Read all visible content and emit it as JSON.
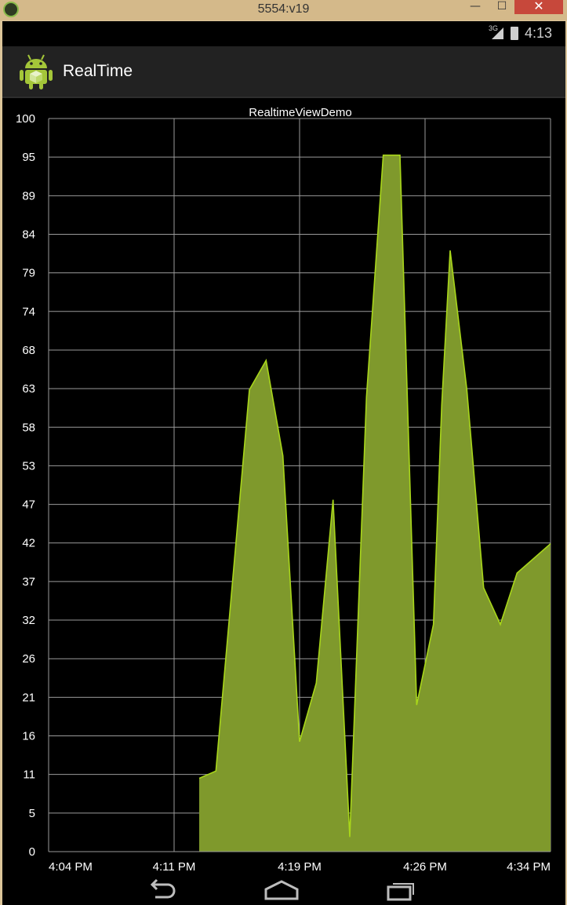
{
  "window": {
    "title": "5554:v19",
    "minimize_glyph": "—",
    "maximize_glyph": "☐",
    "close_glyph": "✕"
  },
  "status_bar": {
    "network": "3G",
    "time": "4:13"
  },
  "action_bar": {
    "app_icon": "android-robot-icon",
    "title": "RealTime"
  },
  "nav_bar": {
    "icons": [
      "back-icon",
      "home-icon",
      "recent-apps-icon"
    ]
  },
  "colors": {
    "fill": "#7f992c",
    "stroke": "#a8d61a",
    "grid": "#9a9a9a",
    "background": "#000000",
    "text": "#ffffff"
  },
  "chart_data": {
    "type": "area",
    "title": "RealtimeViewDemo",
    "xlabel": "",
    "ylabel": "",
    "x_tick_labels": [
      "4:04 PM",
      "4:11 PM",
      "4:19 PM",
      "4:26 PM",
      "4:34 PM"
    ],
    "x_range_minutes": [
      0,
      30
    ],
    "y_tick_labels": [
      "100",
      "95",
      "89",
      "84",
      "79",
      "74",
      "68",
      "63",
      "58",
      "53",
      "47",
      "42",
      "37",
      "32",
      "26",
      "21",
      "16",
      "11",
      "5",
      "0"
    ],
    "ylim": [
      0,
      100
    ],
    "grid": true,
    "legend": "none",
    "x_minutes": [
      9,
      10,
      12,
      13,
      14,
      15,
      16,
      17,
      18,
      19,
      20,
      21,
      22,
      23,
      23.5,
      24,
      25,
      26,
      27,
      28,
      29,
      30
    ],
    "values": [
      10,
      11,
      63,
      67,
      54,
      15,
      23,
      48,
      2,
      62,
      95,
      95,
      20,
      31,
      61,
      82,
      63,
      36,
      31,
      38,
      40,
      42
    ]
  }
}
